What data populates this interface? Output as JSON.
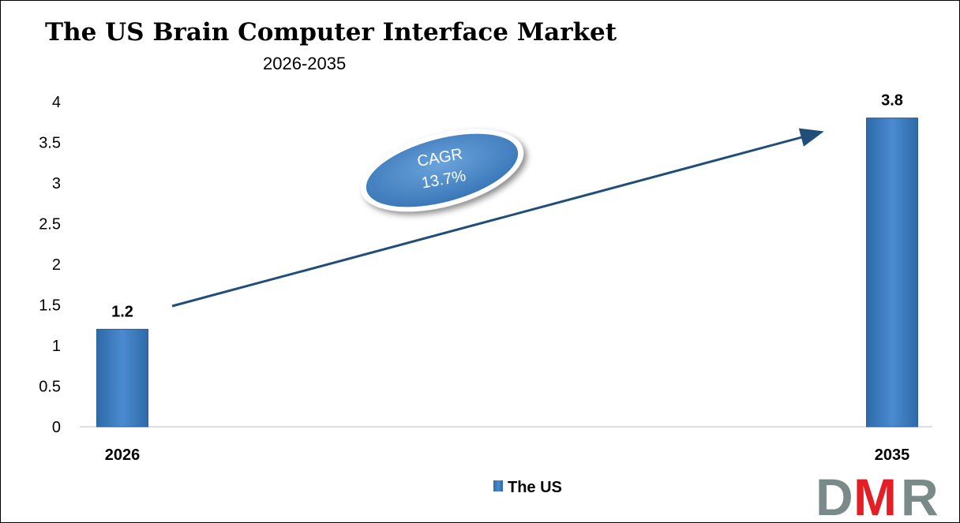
{
  "chart_data": {
    "type": "bar",
    "title": "The US Brain Computer Interface Market",
    "subtitle": "2026-2035",
    "categories": [
      "2026",
      "2035"
    ],
    "series": [
      {
        "name": "The US",
        "values": [
          1.2,
          3.8
        ],
        "color": "#3a7fc4"
      }
    ],
    "data_labels": [
      "1.2",
      "3.8"
    ],
    "ylim": [
      0,
      4
    ],
    "yticks": [
      "0",
      "0.5",
      "1",
      "1.5",
      "2",
      "2.5",
      "3",
      "3.5",
      "4"
    ],
    "grid": false,
    "legend_position": "bottom",
    "annotation": {
      "line1": "CAGR",
      "line2": "13.7%",
      "color": "#4a8ad0",
      "arrow_color": "#1f4e79"
    }
  },
  "logo": {
    "text": "DMR",
    "colors": {
      "D": "#7a8a88",
      "M": "#e31e24",
      "R": "#7a8a88"
    }
  }
}
